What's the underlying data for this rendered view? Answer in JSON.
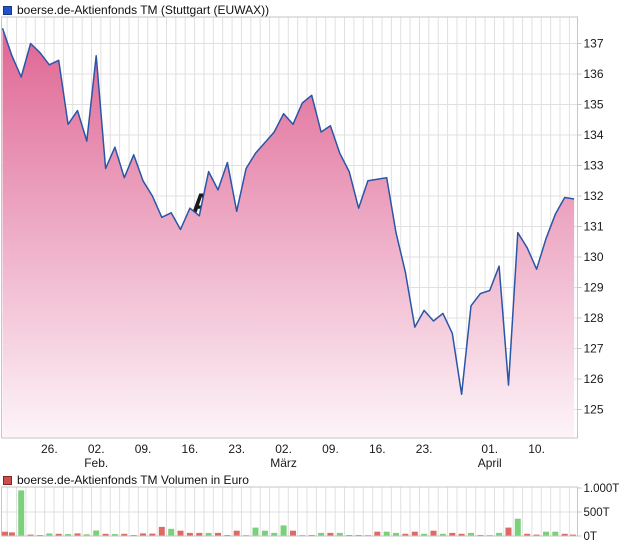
{
  "price_chart": {
    "title": "boerse.de-Aktienfonds TM (Stuttgart (EUWAX))"
  },
  "volume_chart": {
    "title": "boerse.de-Aktienfonds TM Volumen in Euro"
  },
  "colors": {
    "line": "#2b55a7",
    "area_top": "#de6190",
    "area_bottom": "#fdf4f9",
    "grid": "#e0e0e0",
    "border": "#c6c6c6",
    "axis_text": "#1a1a1a",
    "volume_up": "#7cd07c",
    "volume_down": "#dd6a64",
    "price_icon_fill": "#2451c8",
    "price_icon_border": "#123a8a",
    "volume_icon_fill": "#cc4f4f",
    "volume_icon_border": "#8a2525",
    "watermark": "#eadfc9"
  },
  "chart_data": [
    {
      "type": "area",
      "title": "boerse.de-Aktienfonds TM (Stuttgart (EUWAX))",
      "xlabel": "",
      "ylabel": "",
      "ylim": [
        124.1,
        137.9
      ],
      "grid": true,
      "y_ticks": [
        125,
        126,
        127,
        128,
        129,
        130,
        131,
        132,
        133,
        134,
        135,
        136,
        137
      ],
      "x_ticks": [
        {
          "label": "26.",
          "day": 5
        },
        {
          "label": "02.",
          "day": 10,
          "month": "Feb."
        },
        {
          "label": "09.",
          "day": 15
        },
        {
          "label": "16.",
          "day": 20
        },
        {
          "label": "23.",
          "day": 25
        },
        {
          "label": "02.",
          "day": 30,
          "month": "März"
        },
        {
          "label": "09.",
          "day": 35
        },
        {
          "label": "16.",
          "day": 40
        },
        {
          "label": "23.",
          "day": 45
        },
        {
          "label": "01.",
          "day": 52,
          "month": "April"
        },
        {
          "label": "10.",
          "day": 57
        }
      ],
      "values": [
        137.5,
        136.6,
        135.9,
        137.0,
        136.7,
        136.3,
        136.45,
        134.35,
        134.8,
        133.8,
        136.6,
        132.9,
        133.6,
        132.6,
        133.35,
        132.5,
        132.0,
        131.3,
        131.45,
        130.9,
        131.6,
        131.35,
        132.8,
        132.2,
        133.1,
        131.5,
        132.9,
        133.4,
        133.75,
        134.1,
        134.7,
        134.35,
        135.05,
        135.3,
        134.1,
        134.3,
        133.4,
        132.8,
        131.6,
        132.5,
        132.55,
        132.6,
        130.8,
        129.5,
        127.7,
        128.25,
        127.9,
        128.15,
        127.5,
        125.5,
        128.4,
        128.8,
        128.9,
        129.7,
        125.8,
        130.8,
        130.3,
        129.6,
        130.6,
        131.4,
        131.95,
        131.9
      ]
    },
    {
      "type": "bar",
      "title": "boerse.de-Aktienfonds TM Volumen in Euro",
      "unit": "T",
      "ylim": [
        0,
        1040
      ],
      "grid": true,
      "y_ticks": [
        {
          "label": "0T",
          "value": 0
        },
        {
          "label": "500T",
          "value": 500
        },
        {
          "label": "1.000T",
          "value": 1000
        }
      ],
      "values": [
        90,
        75,
        950,
        30,
        15,
        55,
        45,
        40,
        55,
        35,
        115,
        45,
        40,
        45,
        15,
        55,
        50,
        190,
        150,
        110,
        65,
        65,
        65,
        65,
        15,
        110,
        15,
        175,
        110,
        65,
        220,
        110,
        15,
        15,
        65,
        65,
        65,
        20,
        20,
        20,
        90,
        90,
        65,
        45,
        90,
        45,
        110,
        45,
        65,
        45,
        65,
        15,
        15,
        65,
        175,
        360,
        45,
        30,
        90,
        90,
        45,
        30
      ],
      "directions": [
        "d",
        "d",
        "u",
        "d",
        "d",
        "u",
        "d",
        "u",
        "d",
        "u",
        "u",
        "d",
        "u",
        "d",
        "d",
        "d",
        "d",
        "d",
        "u",
        "d",
        "d",
        "d",
        "u",
        "d",
        "d",
        "d",
        "u",
        "u",
        "u",
        "u",
        "u",
        "d",
        "u",
        "d",
        "u",
        "d",
        "u",
        "d",
        "d",
        "u",
        "d",
        "u",
        "u",
        "d",
        "d",
        "u",
        "d",
        "u",
        "d",
        "d",
        "u",
        "d",
        "u",
        "u",
        "d",
        "u",
        "d",
        "d",
        "u",
        "u",
        "d",
        "d"
      ]
    }
  ]
}
